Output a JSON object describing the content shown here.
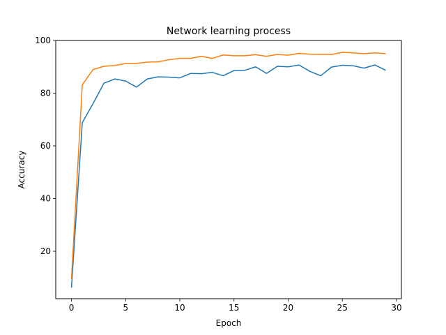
{
  "chart_data": {
    "type": "line",
    "title": "Network learning process",
    "xlabel": "Epoch",
    "ylabel": "Accuracy",
    "xlim": [
      -1.45,
      30.45
    ],
    "ylim": [
      2,
      100
    ],
    "xticks": [
      0,
      5,
      10,
      15,
      20,
      25,
      30
    ],
    "yticks": [
      20,
      40,
      60,
      80,
      100
    ],
    "grid": false,
    "legend": "none",
    "x": [
      0,
      1,
      2,
      3,
      4,
      5,
      6,
      7,
      8,
      9,
      10,
      11,
      12,
      13,
      14,
      15,
      16,
      17,
      18,
      19,
      20,
      21,
      22,
      23,
      24,
      25,
      26,
      27,
      28,
      29
    ],
    "series": [
      {
        "color": "#1f77b4",
        "values": [
          6.2,
          68.8,
          76.1,
          83.8,
          85.4,
          84.6,
          82.3,
          85.4,
          86.2,
          86.1,
          85.8,
          87.5,
          87.4,
          87.9,
          86.6,
          88.6,
          88.7,
          90.0,
          87.5,
          90.2,
          90.0,
          90.7,
          88.3,
          86.6,
          89.9,
          90.6,
          90.4,
          89.5,
          90.7,
          88.7
        ]
      },
      {
        "color": "#ff7f0e",
        "values": [
          9.5,
          83.2,
          89.0,
          90.2,
          90.5,
          91.3,
          91.3,
          91.8,
          91.9,
          92.7,
          93.2,
          93.2,
          94.0,
          93.2,
          94.5,
          94.2,
          94.2,
          94.6,
          94.0,
          94.7,
          94.4,
          95.1,
          94.8,
          94.7,
          94.7,
          95.5,
          95.3,
          95.0,
          95.3,
          95.0
        ]
      }
    ]
  }
}
